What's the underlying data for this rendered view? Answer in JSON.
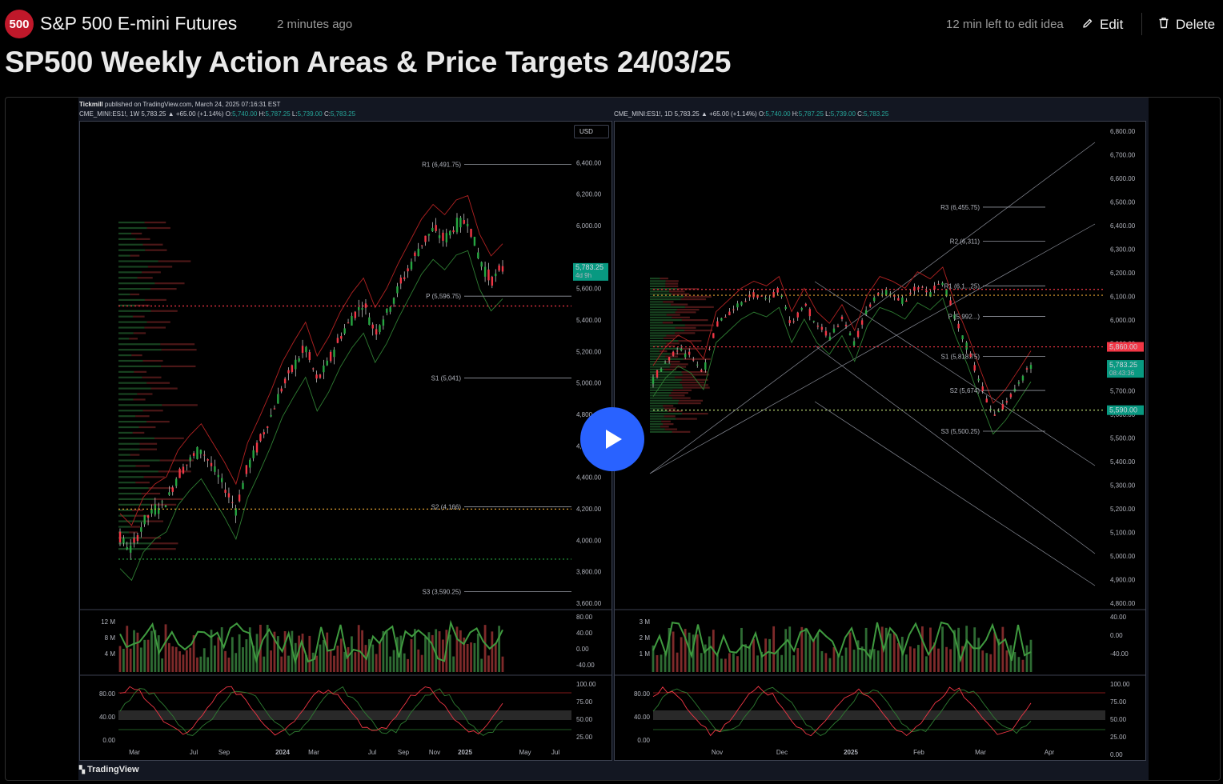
{
  "header": {
    "logo_text": "500",
    "symbol_name": "S&P 500 E-mini Futures",
    "posted_ago": "2 minutes ago",
    "edit_time_left": "12 min left to edit idea",
    "edit_label": "Edit",
    "delete_label": "Delete"
  },
  "idea": {
    "title": "SP500 Weekly Action Areas & Price Targets 24/03/25"
  },
  "chart_image": {
    "author": "Tickmill",
    "published_text": "published on TradingView.com, March 24, 2025 07:16:31 EST",
    "left_header": {
      "prefix": "CME_MINI:ES1!, 1W  5,783.25 ▲ +65.00 (+1.14%)",
      "o_label": "O:",
      "o_value": "5,740.00",
      "h_label": "H:",
      "h_value": "5,787.25",
      "l_label": "L:",
      "l_value": "5,739.00",
      "c_label": "C:",
      "c_value": "5,783.25"
    },
    "right_header": {
      "prefix": "CME_MINI:ES1!, 1D  5,783.25 ▲ +65.00 (+1.14%)",
      "o_label": "O:",
      "o_value": "5,740.00",
      "h_label": "H:",
      "h_value": "5,787.25",
      "l_label": "L:",
      "l_value": "5,739.00",
      "c_label": "C:",
      "c_value": "5,783.25"
    },
    "brand": "TradingView",
    "currency_button": "USD"
  },
  "chart_data": [
    {
      "type": "line",
      "name": "ES1! weekly",
      "x_tick_labels": [
        "Mar",
        "Jul",
        "Sep",
        "2024",
        "Mar",
        "Jul",
        "Sep",
        "Nov",
        "2025",
        "May",
        "Jul"
      ],
      "y_tick_labels": [
        "6,600.00",
        "6,400.00",
        "6,200.00",
        "6,000.00",
        "5,783.25",
        "5,600.00",
        "5,400.00",
        "5,200.00",
        "5,000.00",
        "4,800.00",
        "4,600.00",
        "4,400.00",
        "4,200.00",
        "4,000.00",
        "3,800.00",
        "3,600.00"
      ],
      "ylim": [
        3500,
        6750
      ],
      "levels": [
        {
          "label": "R1 (6,491.75)",
          "value": 6491.75
        },
        {
          "label": "P (5,596.75)",
          "value": 5596.75
        },
        {
          "label": "S1 (5,041)",
          "value": 5041
        },
        {
          "label": "S2 (4,166)",
          "value": 4166
        },
        {
          "label": "S3 (3,590.25)",
          "value": 3590.25
        }
      ],
      "last_price": {
        "value": "5,783.25",
        "countdown": "4d 9h"
      },
      "close_path": [
        3950,
        3870,
        4060,
        4150,
        4200,
        4380,
        4480,
        4560,
        4430,
        4300,
        4150,
        4430,
        4600,
        4780,
        4980,
        5120,
        5250,
        5020,
        5150,
        5320,
        5450,
        5550,
        5350,
        5480,
        5650,
        5800,
        5950,
        6050,
        5980,
        6080,
        6110,
        5850,
        5700,
        5783
      ],
      "volume_panel": {
        "y_ticks": [
          "12 M",
          "8 M",
          "4 M"
        ],
        "osc_ticks": [
          "80.00",
          "40.00",
          "0.00",
          "-40.00"
        ]
      },
      "stoch_panel": {
        "y_ticks": [
          "80.00",
          "40.00",
          "0.00"
        ],
        "right_ticks": [
          "100.00",
          "75.00",
          "50.00",
          "25.00"
        ]
      }
    },
    {
      "type": "line",
      "name": "ES1! daily",
      "x_tick_labels": [
        "Nov",
        "Dec",
        "2025",
        "Feb",
        "Mar",
        "Apr"
      ],
      "y_tick_labels": [
        "6,800.00",
        "6,700.00",
        "6,600.00",
        "6,500.00",
        "6,400.00",
        "6,300.00",
        "6,200.00",
        "6,100.00",
        "6,000.00",
        "5,900.00",
        "5,800.00",
        "5,700.00",
        "5,600.00",
        "5,500.00",
        "5,400.00",
        "5,300.00",
        "5,200.00",
        "5,100.00",
        "5,000.00",
        "4,900.00",
        "4,800.00"
      ],
      "ylim": [
        4760,
        6800
      ],
      "levels": [
        {
          "label": "R3 (6,455.75)",
          "value": 6455.75
        },
        {
          "label": "R2 (6,311)",
          "value": 6311
        },
        {
          "label": "R1 (6,1...25)",
          "value": 6120
        },
        {
          "label": "P (5,992...)",
          "value": 5990
        },
        {
          "label": "S1 (5,818.75)",
          "value": 5818.75
        },
        {
          "label": "S2 (5,674)",
          "value": 5674
        },
        {
          "label": "S3 (5,500.25)",
          "value": 5500.25
        }
      ],
      "price_tags": [
        {
          "value": "5,860.00",
          "color": "#f23645"
        },
        {
          "value": "5,783.25",
          "sub": "08:43:36",
          "color": "#089981"
        },
        {
          "value": "5,590.00",
          "color": "#089981"
        }
      ],
      "close_path": [
        5720,
        5800,
        5850,
        5820,
        5750,
        5950,
        6000,
        6050,
        6080,
        6060,
        6100,
        5950,
        6050,
        5950,
        5900,
        5980,
        5870,
        6020,
        6100,
        6080,
        6050,
        6120,
        6090,
        6140,
        5980,
        5850,
        5700,
        5560,
        5620,
        5700,
        5783
      ],
      "volume_panel": {
        "y_ticks": [
          "3 M",
          "2 M",
          "1 M"
        ],
        "osc_ticks": [
          "40.00",
          "0.00",
          "-40.00"
        ]
      },
      "stoch_panel": {
        "y_ticks": [
          "80.00",
          "40.00",
          "0.00"
        ],
        "right_ticks": [
          "100.00",
          "75.00",
          "50.00",
          "25.00",
          "0.00"
        ]
      }
    }
  ]
}
